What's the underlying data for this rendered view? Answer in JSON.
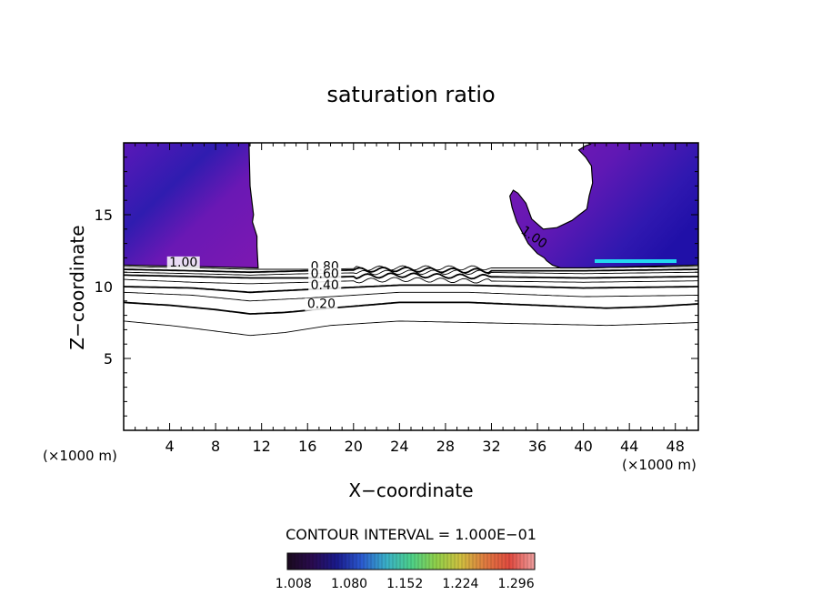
{
  "chart_data": {
    "type": "heatmap",
    "title": "saturation ratio",
    "xlabel": "X−coordinate",
    "ylabel": "Z−coordinate",
    "x_unit_left": "(×1000 m)",
    "x_unit_right": "(×1000 m)",
    "xlim": [
      0,
      50
    ],
    "ylim": [
      0,
      20
    ],
    "x_ticks": [
      4,
      8,
      12,
      16,
      20,
      24,
      28,
      32,
      36,
      40,
      44,
      48
    ],
    "x_tick_labels": [
      "4",
      "8",
      "12",
      "16",
      "20",
      "24",
      "28",
      "32",
      "36",
      "40",
      "44",
      "48"
    ],
    "y_ticks": [
      5,
      10,
      15
    ],
    "y_tick_labels": [
      "5",
      "10",
      "15"
    ],
    "contour_interval_text": "CONTOUR INTERVAL = 1.000E−01",
    "contour_labels": [
      {
        "text": "1.00",
        "x": 5.2,
        "z": 11.4
      },
      {
        "text": "1.00",
        "x": 35.5,
        "z": 13.2
      },
      {
        "text": "0.80",
        "x": 17.5,
        "z": 11.1
      },
      {
        "text": "0.60",
        "x": 17.5,
        "z": 10.6
      },
      {
        "text": "0.40",
        "x": 17.5,
        "z": 9.8
      },
      {
        "text": "0.20",
        "x": 17.2,
        "z": 8.5
      }
    ],
    "contour_lines": [
      {
        "level": 0.1,
        "x": [
          0,
          4,
          8,
          11,
          14,
          18,
          24,
          30,
          36,
          42,
          46,
          50
        ],
        "z": [
          7.6,
          7.3,
          6.9,
          6.6,
          6.8,
          7.3,
          7.6,
          7.5,
          7.4,
          7.3,
          7.4,
          7.5
        ]
      },
      {
        "level": 0.2,
        "x": [
          0,
          4,
          8,
          11,
          14,
          18,
          24,
          30,
          36,
          42,
          46,
          50
        ],
        "z": [
          8.9,
          8.7,
          8.4,
          8.1,
          8.2,
          8.5,
          8.9,
          8.9,
          8.7,
          8.5,
          8.6,
          8.8
        ]
      },
      {
        "level": 0.3,
        "x": [
          0,
          6,
          11,
          16,
          24,
          30,
          40,
          50
        ],
        "z": [
          9.6,
          9.4,
          9.0,
          9.2,
          9.6,
          9.6,
          9.3,
          9.4
        ]
      },
      {
        "level": 0.4,
        "x": [
          0,
          6,
          11,
          16,
          24,
          30,
          40,
          50
        ],
        "z": [
          10.0,
          9.9,
          9.6,
          9.8,
          10.1,
          10.1,
          9.9,
          10.0
        ]
      },
      {
        "level": 0.5,
        "x": [
          0,
          6,
          11,
          16,
          24,
          30,
          40,
          50
        ],
        "z": [
          10.5,
          10.3,
          10.2,
          10.3,
          10.5,
          10.4,
          10.3,
          10.4
        ]
      },
      {
        "level": 0.6,
        "x": [
          0,
          6,
          11,
          16,
          24,
          30,
          40,
          50
        ],
        "z": [
          10.8,
          10.7,
          10.6,
          10.6,
          10.8,
          10.7,
          10.6,
          10.7
        ]
      },
      {
        "level": 0.7,
        "x": [
          0,
          6,
          11,
          16,
          24,
          30,
          40,
          50
        ],
        "z": [
          11.0,
          10.9,
          10.8,
          10.9,
          11.0,
          11.0,
          10.9,
          11.0
        ]
      },
      {
        "level": 0.8,
        "x": [
          0,
          6,
          11,
          16,
          24,
          30,
          40,
          50
        ],
        "z": [
          11.2,
          11.1,
          11.0,
          11.1,
          11.2,
          11.1,
          11.1,
          11.2
        ]
      },
      {
        "level": 0.9,
        "x": [
          0,
          6,
          11,
          16,
          24,
          30,
          40,
          50
        ],
        "z": [
          11.4,
          11.3,
          11.2,
          11.2,
          11.3,
          11.3,
          11.3,
          11.4
        ]
      }
    ],
    "regions": [
      {
        "label": "left supersaturated region",
        "x": [
          0,
          10.9,
          11.0,
          11.3,
          11.2,
          11.6,
          11.6,
          11.7,
          0
        ],
        "z": [
          20,
          20,
          17,
          15,
          14.5,
          13.5,
          12.8,
          11.3,
          11.5
        ]
      },
      {
        "label": "right supersaturated region",
        "x": [
          50,
          50,
          40.5,
          38,
          37.3,
          36.8,
          36.6,
          36.0,
          35.2,
          34.2,
          33.8,
          33.6,
          33.9,
          34.3,
          35.0,
          35.5,
          36.5,
          37.7,
          39.0,
          40.3,
          40.5,
          40.8,
          40.7,
          40.2,
          39.6,
          40.2,
          40.6,
          40.4
        ],
        "z": [
          20,
          11.5,
          11.3,
          11.3,
          11.5,
          11.8,
          12.0,
          12.3,
          13.0,
          14.5,
          15.5,
          16.3,
          16.7,
          16.5,
          15.8,
          14.7,
          14.0,
          14.1,
          14.6,
          15.4,
          16.3,
          17.2,
          18.4,
          19.0,
          19.5,
          19.8,
          19.9,
          20
        ]
      }
    ],
    "colorbar": {
      "tick_labels": [
        "1.008",
        "1.080",
        "1.152",
        "1.224",
        "1.296"
      ],
      "ticks": [
        1.008,
        1.08,
        1.152,
        1.224,
        1.296
      ],
      "range": [
        1.0,
        1.32
      ],
      "colors": [
        "#1a0a1e",
        "#2a0b4f",
        "#1a1a8c",
        "#2b5ad0",
        "#3ab0c8",
        "#4cd08a",
        "#8fd04a",
        "#d0c040",
        "#e07a40",
        "#e04a40",
        "#f0a0a0"
      ]
    },
    "colors": {
      "region_purple": "#7d18b2",
      "region_blue": "#3a1fb8",
      "region_dark": "#1c10a8",
      "cyan_band": "#22d8f0"
    }
  }
}
